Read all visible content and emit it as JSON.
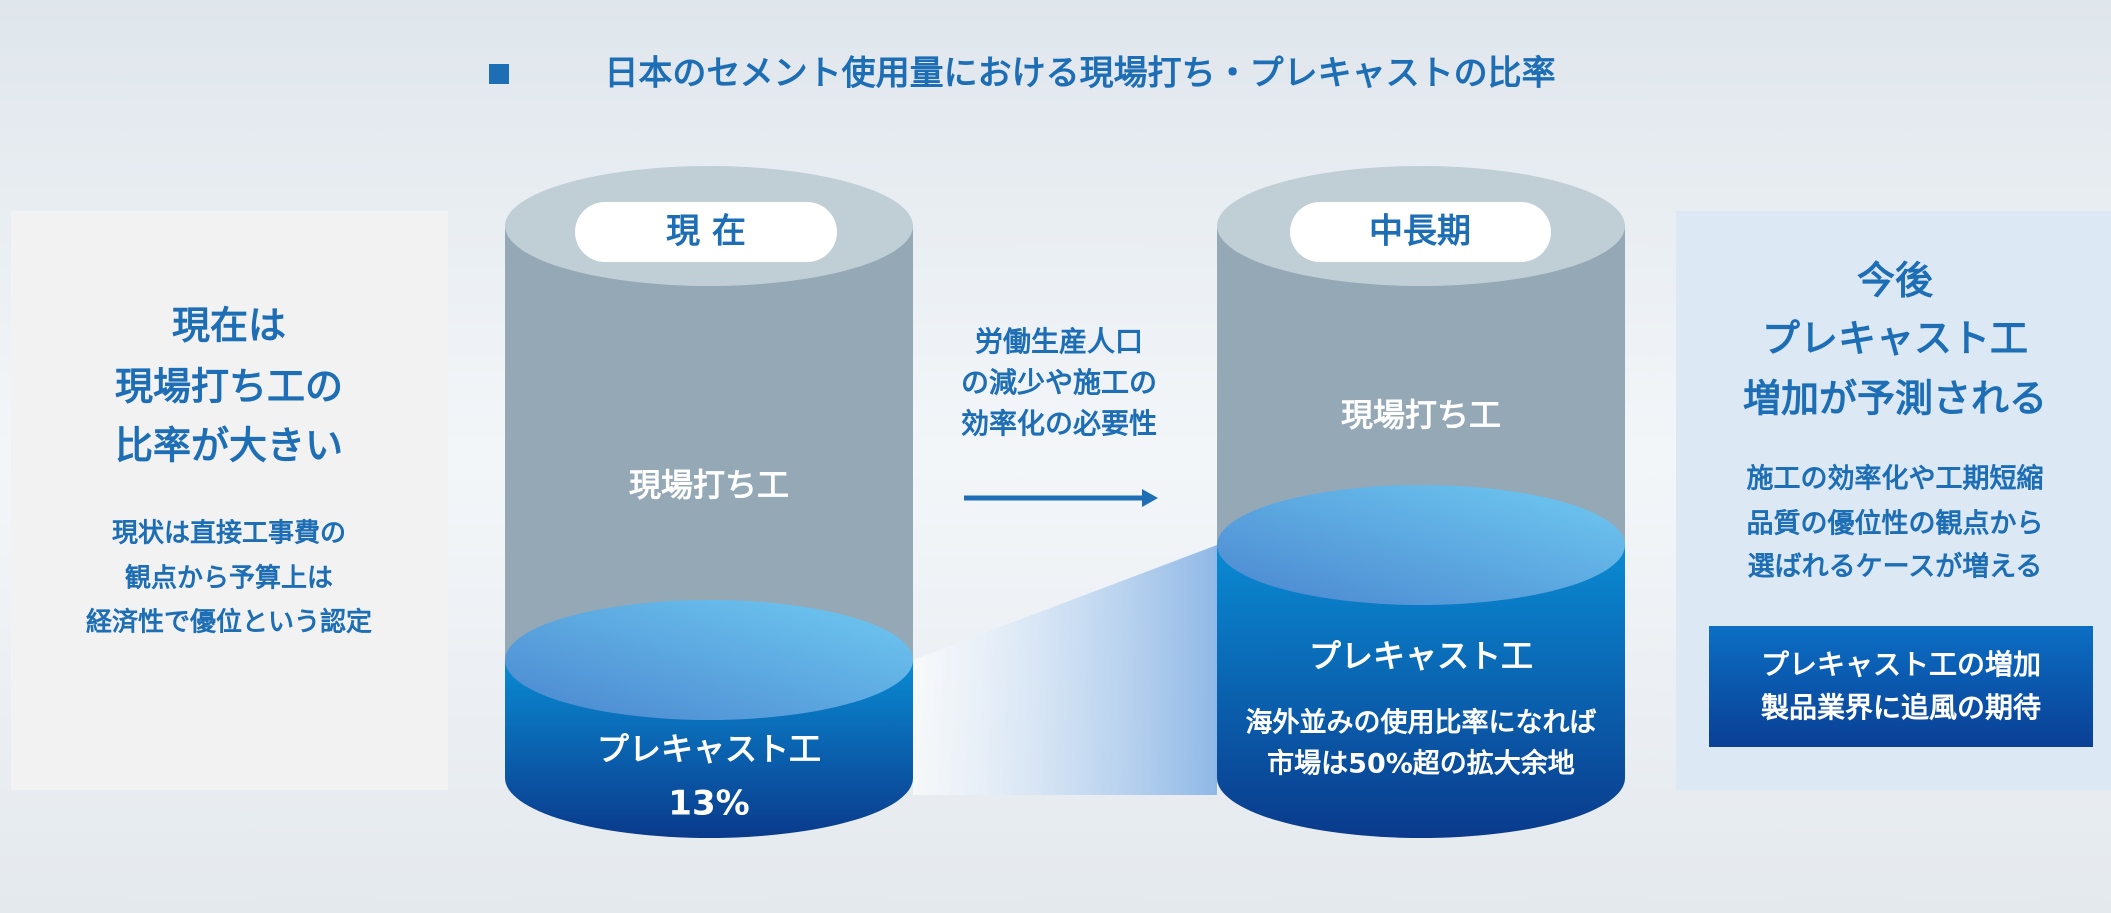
{
  "title": "日本のセメント使用量における現場打ち・プレキャストの比率",
  "left_panel": {
    "heading": [
      "現在は",
      "現場打ち工の",
      "比率が大きい"
    ],
    "body": [
      "現状は直接工事費の",
      "観点から予算上は",
      "経済性で優位という認定"
    ]
  },
  "current": {
    "label": "現 在",
    "upper": "現場打ち工",
    "lower": "プレキャスト工",
    "share": "13%"
  },
  "transition": [
    "労働生産人口",
    "の減少や施工の",
    "効率化の必要性"
  ],
  "future": {
    "label": "中長期",
    "upper": "現場打ち工",
    "lower": "プレキャスト工",
    "note": [
      "海外並みの使用比率になれば",
      "市場は50%超の拡大余地"
    ]
  },
  "right_panel": {
    "heading": [
      "今後",
      "プレキャスト工",
      "増加が予測される"
    ],
    "body": [
      "施工の効率化や工期短縮",
      "品質の優位性の観点から",
      "選ばれるケースが増える"
    ],
    "callout": [
      "プレキャスト工の増加",
      "製品業界に追風の期待"
    ]
  }
}
